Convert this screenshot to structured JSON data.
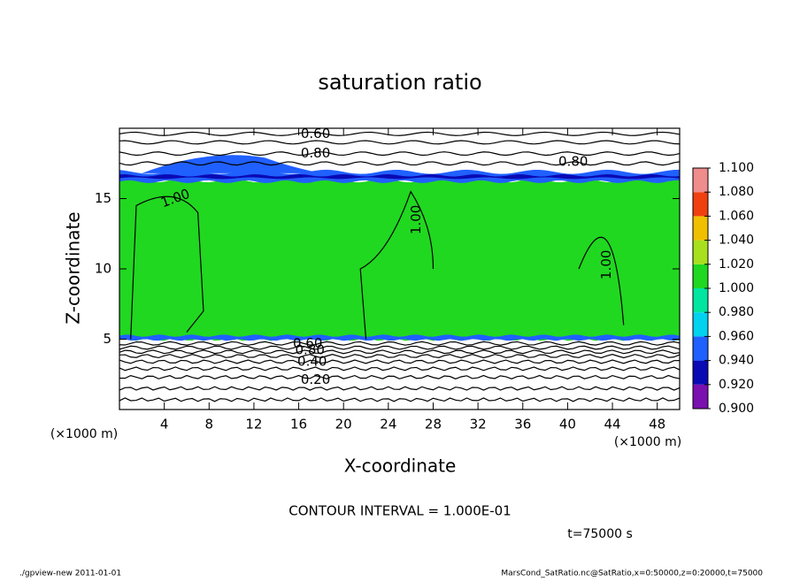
{
  "chart_data": {
    "type": "contour",
    "title": "saturation ratio",
    "xlabel": "X-coordinate",
    "ylabel": "Z-coordinate",
    "x_unit": "(×1000 m)",
    "y_unit": "(×1000 m)",
    "xlim": [
      0,
      50
    ],
    "ylim": [
      0,
      20
    ],
    "xticks": [
      4,
      8,
      12,
      16,
      20,
      24,
      28,
      32,
      36,
      40,
      44,
      48
    ],
    "yticks": [
      5,
      10,
      15
    ],
    "colorbar": {
      "levels": [
        {
          "value": 0.9,
          "label": "0.900"
        },
        {
          "value": 0.92,
          "label": "0.920"
        },
        {
          "value": 0.94,
          "label": "0.940"
        },
        {
          "value": 0.96,
          "label": "0.960"
        },
        {
          "value": 0.98,
          "label": "0.980"
        },
        {
          "value": 1.0,
          "label": "1.000"
        },
        {
          "value": 1.02,
          "label": "1.020"
        },
        {
          "value": 1.04,
          "label": "1.040"
        },
        {
          "value": 1.06,
          "label": "1.060"
        },
        {
          "value": 1.08,
          "label": "1.080"
        },
        {
          "value": 1.1,
          "label": "1.100"
        }
      ],
      "colors": [
        "#7a10b0",
        "#0a0ab4",
        "#2060ff",
        "#00d2f0",
        "#00e6a0",
        "#20d820",
        "#a8e020",
        "#f0c000",
        "#f04010",
        "#f08c8c"
      ]
    },
    "contour_labels": [
      {
        "value": 0.6,
        "label": "0.60"
      },
      {
        "value": 0.8,
        "label": "0.80"
      },
      {
        "value": 0.8,
        "label": "0.80"
      },
      {
        "value": 1.0,
        "label": "1.00"
      },
      {
        "value": 1.0,
        "label": "1.00"
      },
      {
        "value": 1.0,
        "label": "1.00"
      },
      {
        "value": 0.6,
        "label": "0.60"
      },
      {
        "value": 0.8,
        "label": "0.80"
      },
      {
        "value": 0.4,
        "label": "0.40"
      },
      {
        "value": 0.2,
        "label": "0.20"
      }
    ],
    "contour_interval": "CONTOUR INTERVAL = 1.000E-01",
    "time_label": "t=75000 s",
    "footer_left": "./gpview-new   2011-01-01",
    "footer_right": "MarsCond_SatRatio.nc@SatRatio,x=0:50000,z=0:20000,t=75000"
  }
}
